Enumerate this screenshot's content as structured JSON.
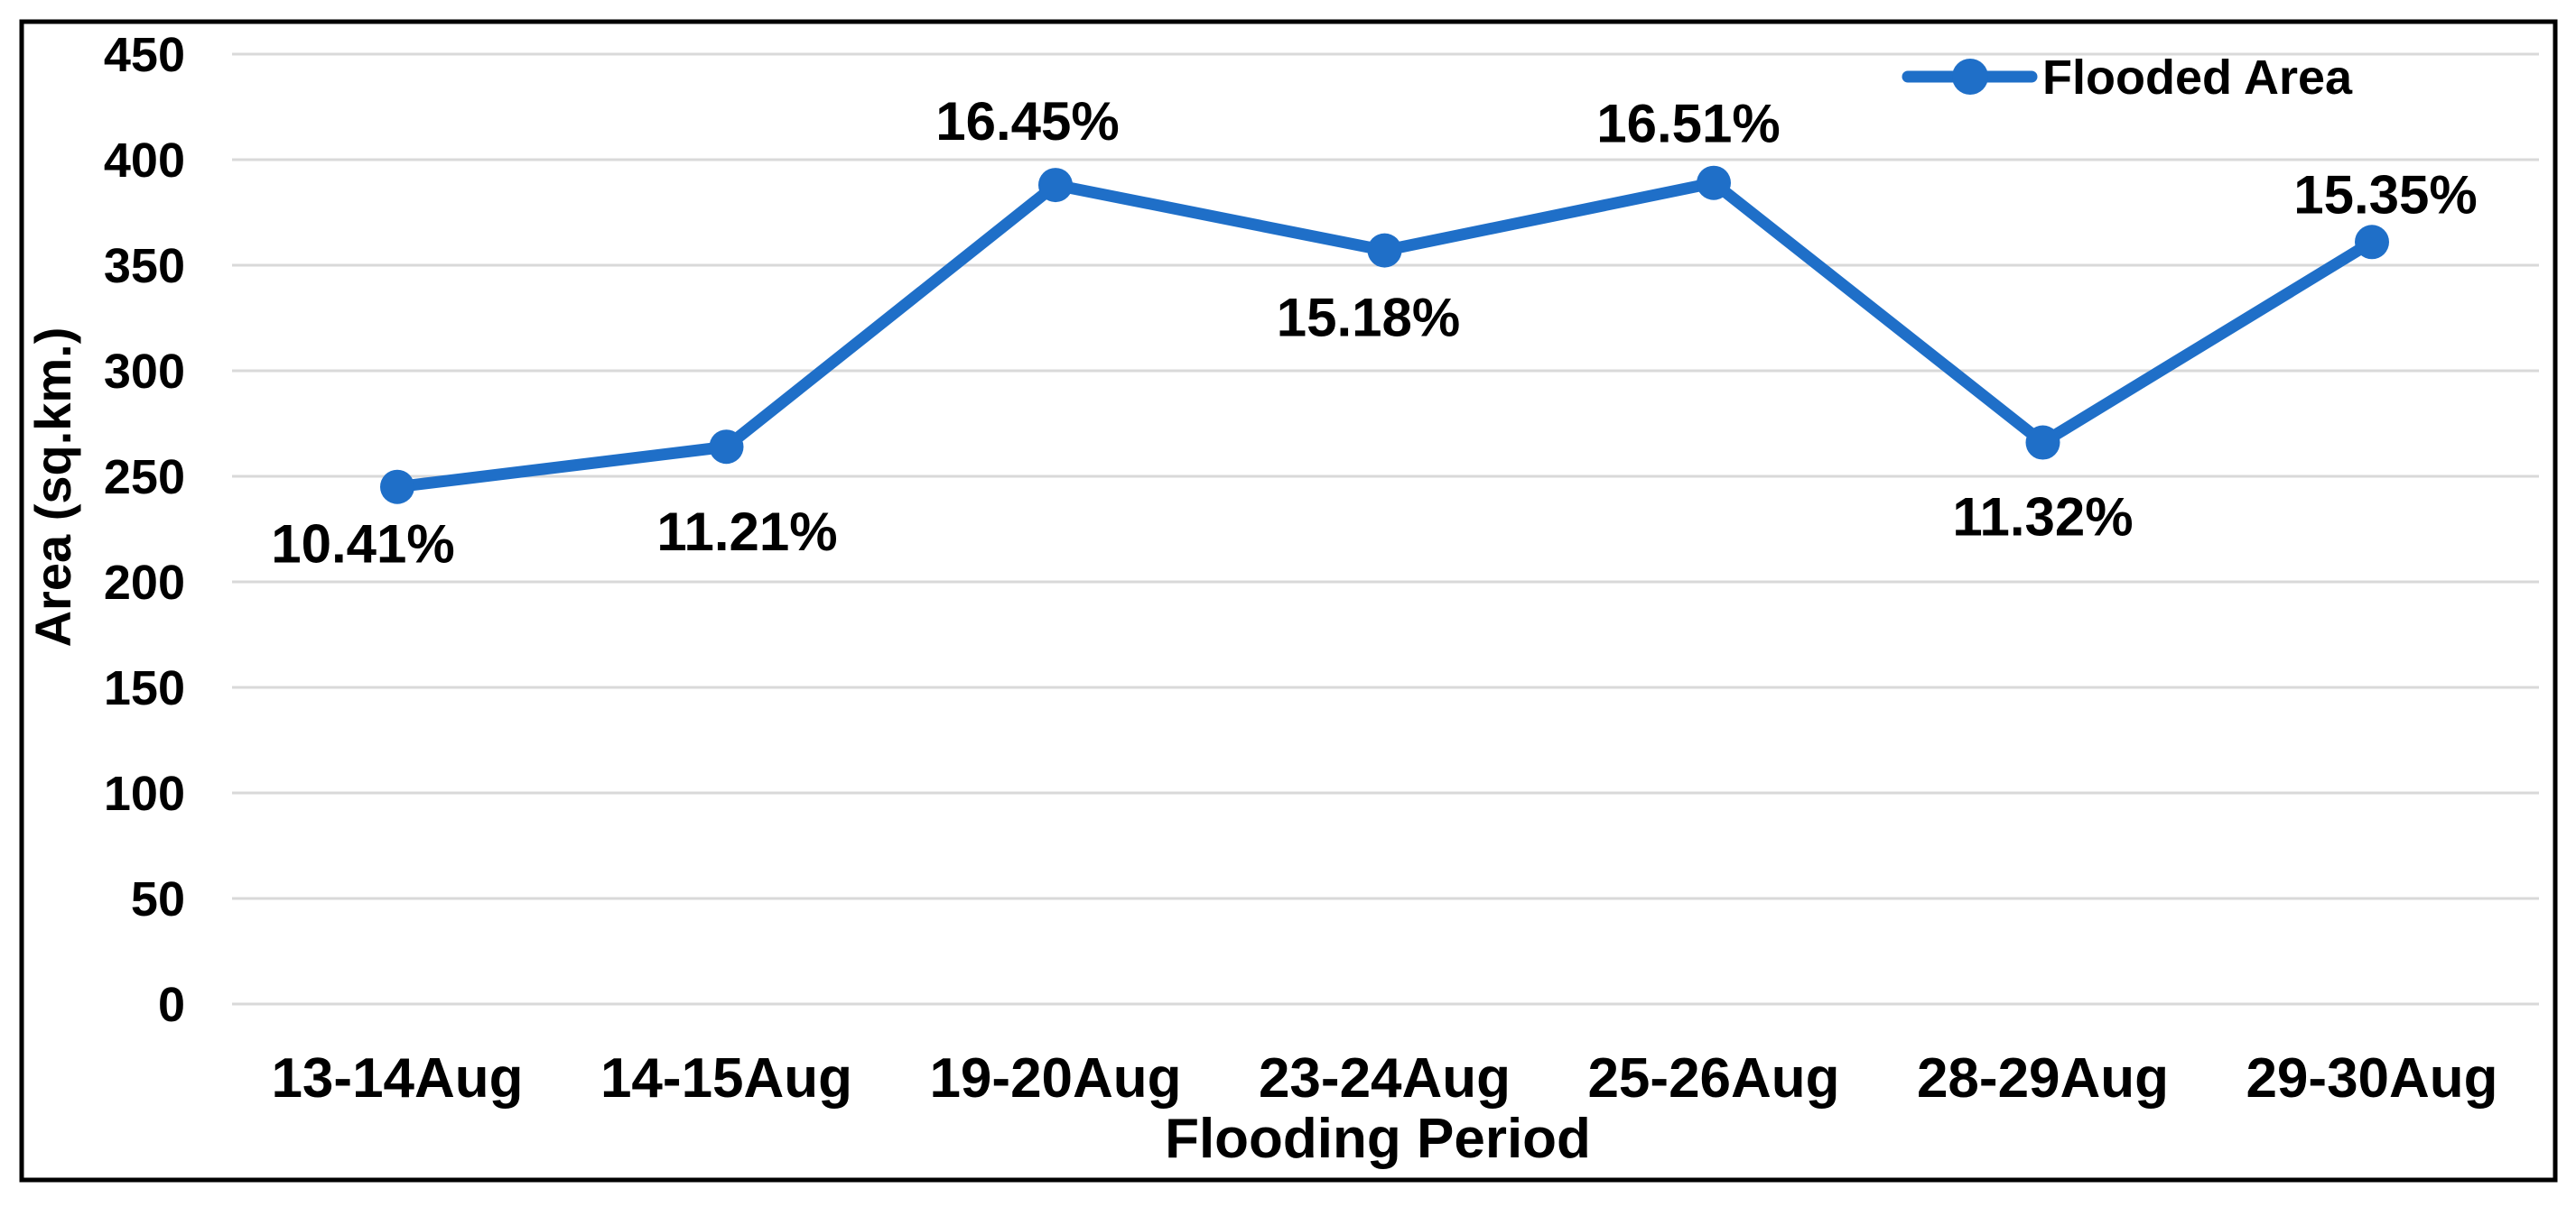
{
  "chart_data": {
    "type": "line",
    "categories": [
      "13-14Aug",
      "14-15Aug",
      "19-20Aug",
      "23-24Aug",
      "25-26Aug",
      "28-29Aug",
      "29-30Aug"
    ],
    "series": [
      {
        "name": "Flooded Area",
        "values": [
          245,
          264,
          388,
          357,
          389,
          266,
          361
        ],
        "point_labels": [
          "10.41%",
          "11.21%",
          "16.45%",
          "15.18%",
          "16.51%",
          "11.32%",
          "15.35%"
        ],
        "label_side": [
          "below",
          "below",
          "above",
          "below",
          "above",
          "below",
          "above"
        ]
      }
    ],
    "xlabel": "Flooding Period",
    "ylabel": "Area (sq.km.)",
    "ylim": [
      0,
      450
    ],
    "ytick_step": 50,
    "yticks": [
      "0",
      "50",
      "100",
      "150",
      "200",
      "250",
      "300",
      "350",
      "400",
      "450"
    ],
    "grid": "horizontal-only",
    "legend": {
      "position": "top-right",
      "entries": [
        "Flooded Area"
      ]
    },
    "colors": {
      "line": "#1F6FC8",
      "marker": "#1F6FC8",
      "gridline": "#D9D9D9",
      "text": "#000000",
      "border": "#000000",
      "background": "#FFFFFF"
    }
  }
}
